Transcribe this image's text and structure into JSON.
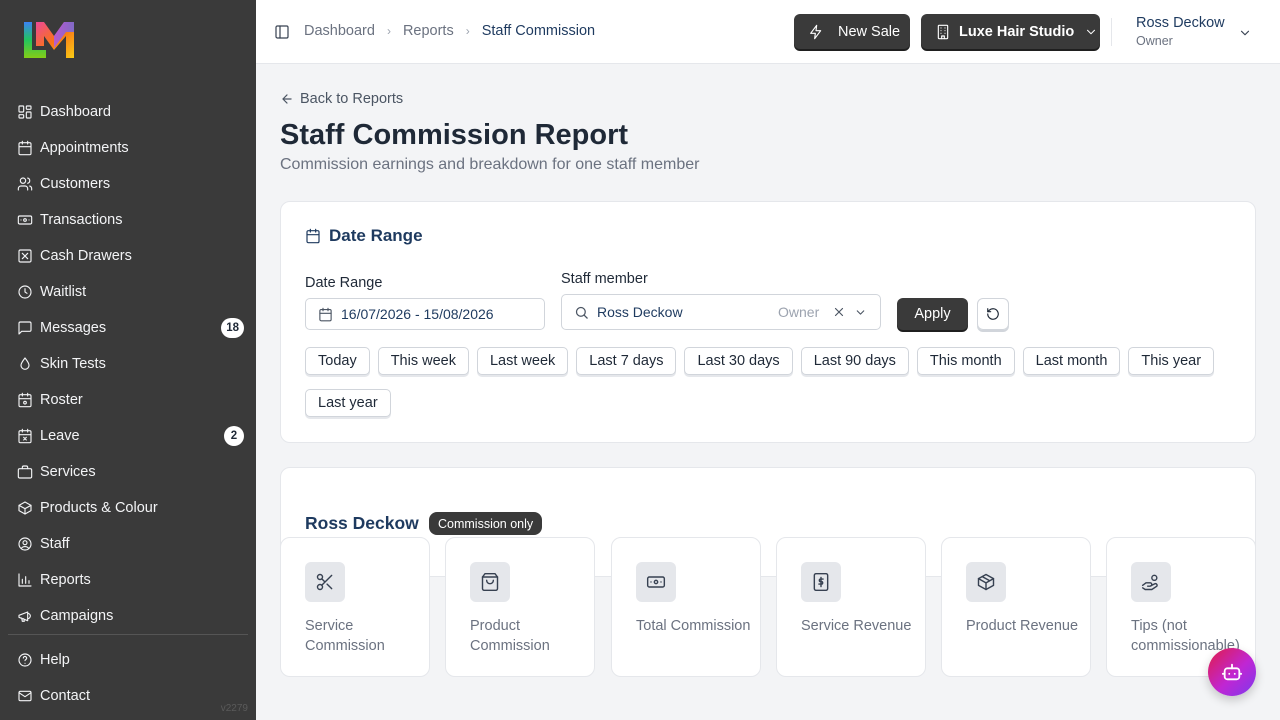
{
  "sidebar": {
    "items": [
      {
        "label": "Dashboard",
        "icon": "dashboard-icon"
      },
      {
        "label": "Appointments",
        "icon": "calendar-icon"
      },
      {
        "label": "Customers",
        "icon": "users-icon"
      },
      {
        "label": "Transactions",
        "icon": "banknote-icon"
      },
      {
        "label": "Cash Drawers",
        "icon": "cash-drawer-icon"
      },
      {
        "label": "Waitlist",
        "icon": "clock-icon"
      },
      {
        "label": "Messages",
        "icon": "message-icon",
        "badge": "18"
      },
      {
        "label": "Skin Tests",
        "icon": "droplet-icon"
      },
      {
        "label": "Roster",
        "icon": "roster-icon"
      },
      {
        "label": "Leave",
        "icon": "calendar-x-icon",
        "badge": "2"
      },
      {
        "label": "Services",
        "icon": "briefcase-icon"
      },
      {
        "label": "Products & Colour",
        "icon": "package-icon"
      },
      {
        "label": "Staff",
        "icon": "user-circle-icon"
      },
      {
        "label": "Reports",
        "icon": "bar-chart-icon"
      },
      {
        "label": "Campaigns",
        "icon": "megaphone-icon"
      }
    ],
    "footer_items": [
      {
        "label": "Help",
        "icon": "help-icon"
      },
      {
        "label": "Contact",
        "icon": "mail-icon"
      }
    ],
    "version": "v2279"
  },
  "topbar": {
    "breadcrumbs": [
      "Dashboard",
      "Reports",
      "Staff Commission"
    ],
    "new_sale_label": "New Sale",
    "studio_label": "Luxe Hair Studio",
    "user_name": "Ross Deckow",
    "user_role": "Owner"
  },
  "main": {
    "back_label": "Back to Reports",
    "title": "Staff Commission Report",
    "subtitle": "Commission earnings and breakdown for one staff member"
  },
  "date_card": {
    "heading": "Date Range",
    "date_label": "Date Range",
    "date_value": "16/07/2026 - 15/08/2026",
    "staff_label": "Staff member",
    "staff_value": "Ross Deckow",
    "staff_role": "Owner",
    "apply_label": "Apply",
    "presets": [
      "Today",
      "This week",
      "Last week",
      "Last 7 days",
      "Last 30 days",
      "Last 90 days",
      "This month",
      "Last month",
      "This year",
      "Last year"
    ]
  },
  "staff_card": {
    "name": "Ross Deckow",
    "pill": "Commission only"
  },
  "stats": [
    {
      "label": "Service Commission",
      "icon": "scissors-icon"
    },
    {
      "label": "Product Commission",
      "icon": "shopping-bag-icon"
    },
    {
      "label": "Total Commission",
      "icon": "banknote-icon"
    },
    {
      "label": "Service Revenue",
      "icon": "receipt-dollar-icon"
    },
    {
      "label": "Product Revenue",
      "icon": "box-icon"
    },
    {
      "label": "Tips (not commissionable)",
      "icon": "hand-coins-icon"
    }
  ],
  "colors": {
    "sidebar_bg": "#3a3a3a",
    "accent_navy": "#1e3a5f",
    "dark_button": "#3a3a3a"
  }
}
